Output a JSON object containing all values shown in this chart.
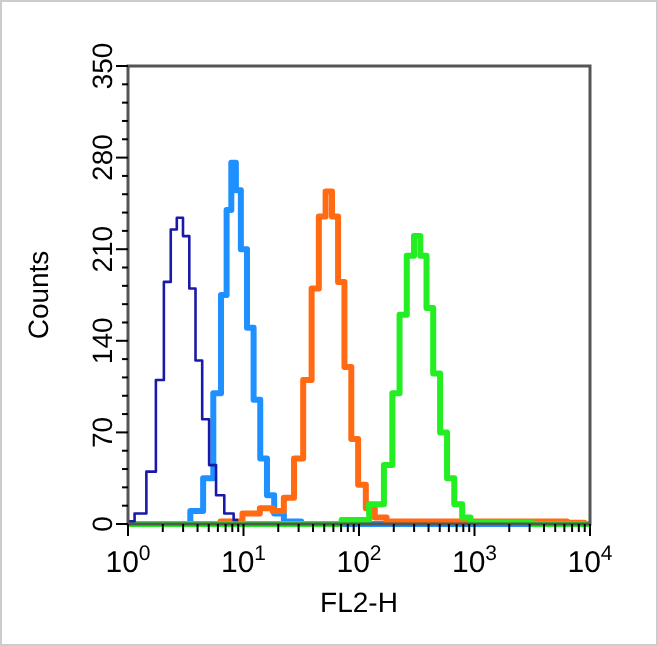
{
  "chart_data": {
    "type": "step",
    "xlabel": "FL2-H",
    "ylabel": "Counts",
    "log": "x",
    "xlim": [
      1,
      10000
    ],
    "ylim": [
      0,
      350
    ],
    "xticks": [
      {
        "value": 1,
        "label": "10$^{0}$"
      },
      {
        "value": 2,
        "label": null
      },
      {
        "value": 3,
        "label": null
      },
      {
        "value": 4,
        "label": null
      },
      {
        "value": 5,
        "label": null
      },
      {
        "value": 6,
        "label": null
      },
      {
        "value": 7,
        "label": null
      },
      {
        "value": 8,
        "label": null
      },
      {
        "value": 9,
        "label": null
      },
      {
        "value": 10,
        "label": "10$^{1}$"
      },
      {
        "value": 20,
        "label": null
      },
      {
        "value": 30,
        "label": null
      },
      {
        "value": 40,
        "label": null
      },
      {
        "value": 50,
        "label": null
      },
      {
        "value": 60,
        "label": null
      },
      {
        "value": 70,
        "label": null
      },
      {
        "value": 80,
        "label": null
      },
      {
        "value": 90,
        "label": null
      },
      {
        "value": 100,
        "label": "10$^{2}$"
      },
      {
        "value": 200,
        "label": null
      },
      {
        "value": 300,
        "label": null
      },
      {
        "value": 400,
        "label": null
      },
      {
        "value": 500,
        "label": null
      },
      {
        "value": 600,
        "label": null
      },
      {
        "value": 700,
        "label": null
      },
      {
        "value": 800,
        "label": null
      },
      {
        "value": 900,
        "label": null
      },
      {
        "value": 1000,
        "label": "10$^{3}$"
      },
      {
        "value": 2000,
        "label": null
      },
      {
        "value": 3000,
        "label": null
      },
      {
        "value": 4000,
        "label": null
      },
      {
        "value": 5000,
        "label": null
      },
      {
        "value": 6000,
        "label": null
      },
      {
        "value": 7000,
        "label": null
      },
      {
        "value": 8000,
        "label": null
      },
      {
        "value": 9000,
        "label": null
      },
      {
        "value": 10000,
        "label": "10$^{4}$"
      }
    ],
    "yticks": [
      0,
      {
        "value": 14,
        "label": null
      },
      {
        "value": 28,
        "label": null
      },
      {
        "value": 42,
        "label": null
      },
      {
        "value": 56,
        "label": null
      },
      70,
      {
        "value": 84,
        "label": null
      },
      {
        "value": 98,
        "label": null
      },
      {
        "value": 112,
        "label": null
      },
      {
        "value": 126,
        "label": null
      },
      140,
      {
        "value": 154,
        "label": null
      },
      {
        "value": 168,
        "label": null
      },
      {
        "value": 182,
        "label": null
      },
      {
        "value": 196,
        "label": null
      },
      210,
      {
        "value": 224,
        "label": null
      },
      {
        "value": 238,
        "label": null
      },
      {
        "value": 252,
        "label": null
      },
      {
        "value": 266,
        "label": null
      },
      280,
      {
        "value": 294,
        "label": null
      },
      {
        "value": 308,
        "label": null
      },
      {
        "value": 322,
        "label": null
      },
      {
        "value": 336,
        "label": null
      },
      350
    ],
    "grid": false,
    "series": [
      {
        "color": "#1a1aa8",
        "x": [
          1,
          1.3,
          1.6,
          1.9,
          2.2,
          2.5,
          2.8,
          3.2,
          3.6,
          4.1,
          4.7,
          5.4,
          6.2,
          7.5,
          9
        ],
        "values": [
          2,
          8,
          40,
          110,
          185,
          225,
          234,
          220,
          180,
          125,
          80,
          45,
          22,
          8,
          3
        ]
      },
      {
        "color": "#1e90ff",
        "x": [
          3,
          4,
          5,
          6,
          6.8,
          7.5,
          8.2,
          9,
          10,
          11.5,
          13,
          15,
          17,
          20,
          25,
          40,
          10000
        ],
        "values": [
          0,
          10,
          35,
          100,
          175,
          240,
          276,
          255,
          210,
          150,
          95,
          50,
          22,
          8,
          2,
          0,
          0
        ]
      },
      {
        "color": "#ff6a13",
        "x": [
          1,
          5,
          8,
          12,
          16,
          20,
          25,
          30,
          36,
          42,
          48,
          55,
          62,
          70,
          80,
          92,
          105,
          125,
          150,
          200,
          1000,
          5000,
          8000,
          10000
        ],
        "values": [
          0,
          0,
          2,
          8,
          12,
          10,
          20,
          50,
          110,
          180,
          235,
          254,
          235,
          185,
          120,
          65,
          30,
          12,
          5,
          2,
          2,
          2,
          1,
          0
        ]
      },
      {
        "color": "#22ee22",
        "x": [
          1,
          50,
          100,
          150,
          180,
          210,
          240,
          280,
          320,
          360,
          410,
          470,
          540,
          620,
          720,
          850,
          1000,
          10000
        ],
        "values": [
          0,
          0,
          3,
          15,
          45,
          100,
          160,
          205,
          220,
          205,
          165,
          115,
          70,
          35,
          15,
          5,
          1,
          0
        ]
      }
    ]
  }
}
